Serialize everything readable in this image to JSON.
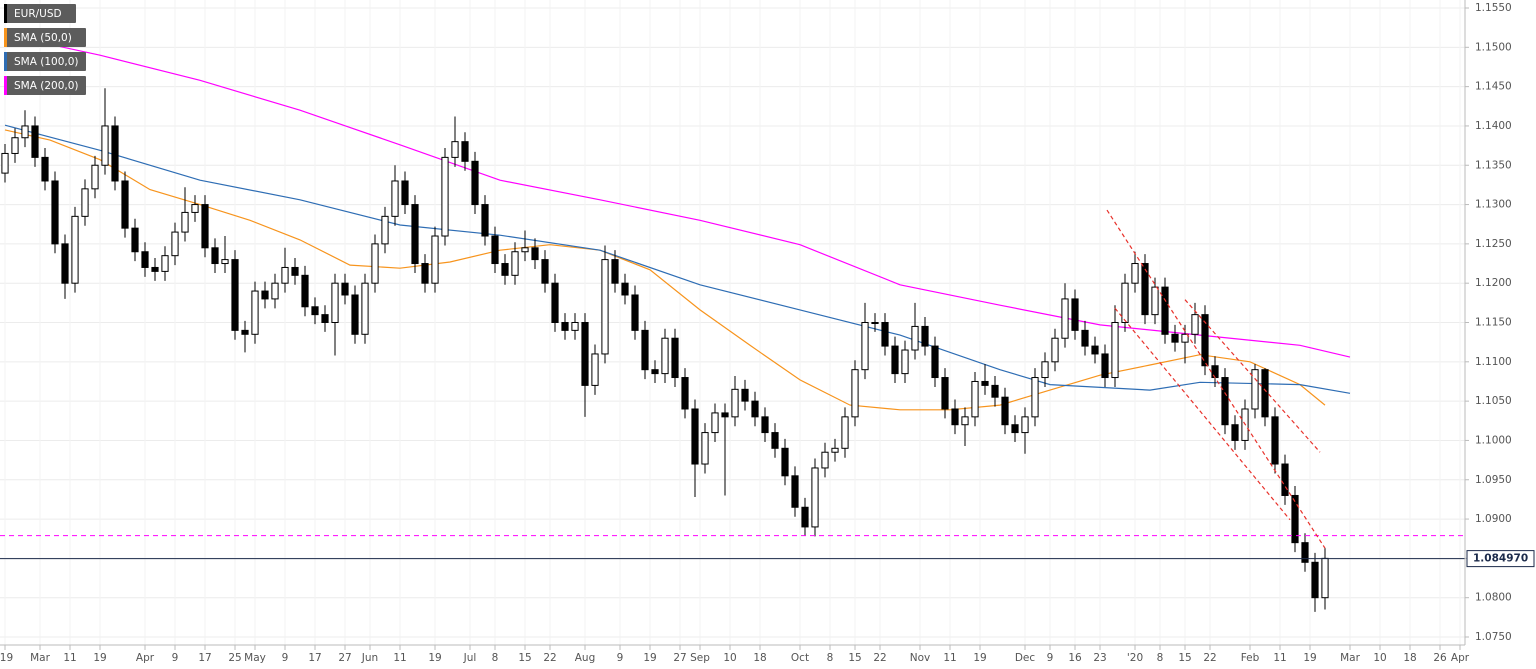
{
  "chart_data": {
    "type": "candlestick",
    "name": "EUR/USD",
    "up_color": "#ffffff",
    "down_color": "#000000",
    "x": [
      0,
      2,
      4,
      6,
      8,
      10,
      12,
      14,
      16,
      18,
      20,
      22,
      24,
      26,
      28,
      30,
      32,
      34,
      36,
      38,
      40,
      42,
      44,
      46,
      48,
      50,
      52,
      54,
      56,
      58,
      60,
      62,
      64,
      66,
      68,
      70,
      72,
      74,
      76,
      78,
      80,
      82,
      84,
      86,
      88,
      90,
      92,
      94,
      96,
      98,
      100,
      102,
      104,
      106,
      108,
      110,
      112,
      114,
      116,
      118,
      120,
      122,
      124,
      126,
      128,
      130,
      132,
      134,
      136,
      138,
      140,
      142,
      144,
      146,
      148,
      150,
      152,
      154,
      156,
      158,
      160,
      162,
      164,
      166,
      168,
      170,
      172,
      174,
      176,
      178,
      180,
      182,
      184,
      186,
      188,
      190,
      192,
      194,
      196,
      198,
      200,
      202,
      204,
      206,
      208,
      210,
      212,
      214,
      216,
      218,
      220,
      222,
      224,
      226,
      228,
      230,
      232,
      234,
      236,
      238,
      240,
      242,
      244,
      246,
      248,
      250,
      252,
      254,
      256,
      258,
      260,
      262,
      264
    ],
    "open": [
      1.134,
      1.1365,
      1.1385,
      1.14,
      1.136,
      1.133,
      1.125,
      1.12,
      1.1285,
      1.132,
      1.135,
      1.14,
      1.133,
      1.127,
      1.124,
      1.122,
      1.1215,
      1.1235,
      1.1265,
      1.129,
      1.13,
      1.1245,
      1.1225,
      1.123,
      1.114,
      1.1135,
      1.119,
      1.118,
      1.12,
      1.122,
      1.121,
      1.117,
      1.116,
      1.115,
      1.12,
      1.1185,
      1.1135,
      1.12,
      1.125,
      1.1285,
      1.133,
      1.13,
      1.1225,
      1.12,
      1.126,
      1.136,
      1.138,
      1.1355,
      1.13,
      1.126,
      1.1225,
      1.121,
      1.124,
      1.1245,
      1.123,
      1.12,
      1.115,
      1.114,
      1.115,
      1.107,
      1.111,
      1.123,
      1.12,
      1.1185,
      1.114,
      1.109,
      1.1085,
      1.113,
      1.108,
      1.104,
      1.097,
      1.101,
      1.1035,
      1.103,
      1.1065,
      1.105,
      1.103,
      1.101,
      1.099,
      1.0955,
      1.0915,
      1.089,
      1.0965,
      1.0985,
      1.099,
      1.103,
      1.109,
      1.115,
      1.115,
      1.112,
      1.1085,
      1.1115,
      1.1145,
      1.112,
      1.108,
      1.104,
      1.102,
      1.103,
      1.1075,
      1.107,
      1.1055,
      1.102,
      1.101,
      1.103,
      1.108,
      1.11,
      1.113,
      1.118,
      1.114,
      1.112,
      1.111,
      1.108,
      1.115,
      1.12,
      1.1225,
      1.116,
      1.1195,
      1.1135,
      1.1125,
      1.1135,
      1.116,
      1.1095,
      1.108,
      1.102,
      1.1,
      1.104,
      1.109,
      1.103,
      1.097,
      1.093,
      1.087,
      1.0845,
      1.08
    ],
    "high": [
      1.1377,
      1.1397,
      1.142,
      1.1412,
      1.1372,
      1.1342,
      1.1262,
      1.1297,
      1.1332,
      1.1362,
      1.1448,
      1.1412,
      1.1342,
      1.1282,
      1.1252,
      1.1232,
      1.1247,
      1.1277,
      1.1322,
      1.1312,
      1.1312,
      1.1257,
      1.126,
      1.1242,
      1.1152,
      1.1202,
      1.1202,
      1.1212,
      1.1245,
      1.1232,
      1.1222,
      1.1182,
      1.1172,
      1.1212,
      1.1212,
      1.1197,
      1.1212,
      1.1262,
      1.1297,
      1.135,
      1.1342,
      1.1312,
      1.1237,
      1.1272,
      1.1372,
      1.1412,
      1.1392,
      1.1367,
      1.1312,
      1.1272,
      1.1237,
      1.1252,
      1.1267,
      1.1257,
      1.1242,
      1.1212,
      1.1162,
      1.1162,
      1.1162,
      1.1122,
      1.1248,
      1.1242,
      1.1212,
      1.1197,
      1.1152,
      1.1102,
      1.1142,
      1.1142,
      1.1092,
      1.1052,
      1.1022,
      1.1047,
      1.1047,
      1.1082,
      1.1077,
      1.1062,
      1.1042,
      1.1022,
      1.1002,
      1.0967,
      1.0927,
      1.0977,
      1.0997,
      1.1002,
      1.1042,
      1.1102,
      1.1175,
      1.1162,
      1.1162,
      1.1132,
      1.1127,
      1.1175,
      1.1157,
      1.1132,
      1.1092,
      1.1052,
      1.1042,
      1.1087,
      1.1097,
      1.1082,
      1.1067,
      1.1032,
      1.1042,
      1.1092,
      1.1112,
      1.1142,
      1.12,
      1.1192,
      1.1152,
      1.1132,
      1.1122,
      1.1172,
      1.1212,
      1.124,
      1.1237,
      1.1207,
      1.1207,
      1.1147,
      1.1147,
      1.1175,
      1.1172,
      1.1107,
      1.1092,
      1.1032,
      1.1052,
      1.1097,
      1.1092,
      1.1042,
      1.0982,
      1.0942,
      1.0882,
      1.0857,
      1.0863
    ],
    "low": [
      1.1328,
      1.1353,
      1.1373,
      1.1348,
      1.1318,
      1.1238,
      1.118,
      1.1188,
      1.1273,
      1.1308,
      1.1338,
      1.1318,
      1.1258,
      1.1228,
      1.1208,
      1.1203,
      1.1203,
      1.1223,
      1.1253,
      1.1278,
      1.1233,
      1.1213,
      1.1213,
      1.1128,
      1.1112,
      1.1123,
      1.1168,
      1.1168,
      1.1188,
      1.1198,
      1.1158,
      1.1148,
      1.1138,
      1.1108,
      1.1173,
      1.1123,
      1.1123,
      1.1188,
      1.1238,
      1.1273,
      1.1288,
      1.1213,
      1.1188,
      1.1188,
      1.1248,
      1.1348,
      1.1343,
      1.1288,
      1.1248,
      1.1213,
      1.1198,
      1.1198,
      1.1228,
      1.1218,
      1.1188,
      1.1138,
      1.1128,
      1.1128,
      1.103,
      1.1058,
      1.1098,
      1.1188,
      1.1173,
      1.1128,
      1.1078,
      1.1073,
      1.1073,
      1.1068,
      1.1028,
      1.0928,
      1.0958,
      1.0998,
      1.093,
      1.1018,
      1.1038,
      1.1018,
      1.0998,
      1.0978,
      1.0943,
      1.0903,
      1.0879,
      1.0878,
      1.0953,
      1.0973,
      1.0978,
      1.1018,
      1.1078,
      1.1138,
      1.1108,
      1.1073,
      1.1073,
      1.1103,
      1.1108,
      1.1068,
      1.1028,
      1.1008,
      1.0993,
      1.1018,
      1.1058,
      1.1043,
      1.1008,
      1.0998,
      1.0983,
      1.1018,
      1.1068,
      1.1088,
      1.1118,
      1.1128,
      1.1108,
      1.1098,
      1.1068,
      1.1068,
      1.1138,
      1.1188,
      1.1148,
      1.1148,
      1.1123,
      1.1113,
      1.1098,
      1.1123,
      1.1083,
      1.1068,
      1.1008,
      1.0988,
      1.0988,
      1.1028,
      1.1018,
      1.0958,
      1.0918,
      1.0858,
      1.0833,
      1.0782,
      1.0785
    ],
    "close": [
      1.1365,
      1.1385,
      1.14,
      1.136,
      1.133,
      1.125,
      1.12,
      1.1285,
      1.132,
      1.135,
      1.14,
      1.133,
      1.127,
      1.124,
      1.122,
      1.1215,
      1.1235,
      1.1265,
      1.129,
      1.13,
      1.1245,
      1.1225,
      1.123,
      1.114,
      1.1135,
      1.119,
      1.118,
      1.12,
      1.122,
      1.121,
      1.117,
      1.116,
      1.115,
      1.12,
      1.1185,
      1.1135,
      1.12,
      1.125,
      1.1285,
      1.133,
      1.13,
      1.1225,
      1.12,
      1.126,
      1.136,
      1.138,
      1.1355,
      1.13,
      1.126,
      1.1225,
      1.121,
      1.124,
      1.1245,
      1.123,
      1.12,
      1.115,
      1.114,
      1.115,
      1.107,
      1.111,
      1.123,
      1.12,
      1.1185,
      1.114,
      1.109,
      1.1085,
      1.113,
      1.108,
      1.104,
      1.097,
      1.101,
      1.1035,
      1.103,
      1.1065,
      1.105,
      1.103,
      1.101,
      1.099,
      1.0955,
      1.0915,
      1.089,
      1.0965,
      1.0985,
      1.099,
      1.103,
      1.109,
      1.115,
      1.115,
      1.112,
      1.1085,
      1.1115,
      1.1145,
      1.112,
      1.108,
      1.104,
      1.102,
      1.103,
      1.1075,
      1.107,
      1.1055,
      1.102,
      1.101,
      1.103,
      1.108,
      1.11,
      1.113,
      1.118,
      1.114,
      1.112,
      1.111,
      1.108,
      1.115,
      1.12,
      1.1225,
      1.116,
      1.1195,
      1.1135,
      1.1125,
      1.1135,
      1.116,
      1.1095,
      1.108,
      1.102,
      1.1,
      1.104,
      1.109,
      1.103,
      1.097,
      1.093,
      1.087,
      1.0845,
      1.08,
      1.085
    ],
    "series": [
      {
        "name": "SMA (50,0)",
        "color": "#f7941d",
        "x": [
          0,
          9,
          19,
          29,
          39,
          49,
          59,
          69,
          79,
          89,
          99,
          109,
          119,
          129,
          139,
          149,
          159,
          169,
          179,
          189,
          199,
          209,
          219,
          229,
          239,
          249,
          259,
          264
        ],
        "values": [
          1.1395,
          1.1382,
          1.1357,
          1.1319,
          1.13,
          1.128,
          1.1255,
          1.1223,
          1.1219,
          1.1227,
          1.1242,
          1.1249,
          1.1242,
          1.1217,
          1.1166,
          1.1121,
          1.1077,
          1.1045,
          1.1039,
          1.1039,
          1.1045,
          1.1064,
          1.1083,
          1.1096,
          1.1109,
          1.11,
          1.1071,
          1.1045
        ]
      },
      {
        "name": "SMA (100,0)",
        "color": "#2e6db4",
        "x": [
          0,
          19,
          39,
          59,
          79,
          99,
          119,
          139,
          159,
          179,
          199,
          209,
          229,
          239,
          259,
          269
        ],
        "values": [
          1.1401,
          1.1369,
          1.1331,
          1.1306,
          1.1274,
          1.1261,
          1.1242,
          1.1198,
          1.1166,
          1.1134,
          1.109,
          1.1071,
          1.1064,
          1.1074,
          1.1071,
          1.106
        ]
      },
      {
        "name": "SMA (200,0)",
        "color": "#ff00ff",
        "x": [
          0,
          19,
          39,
          59,
          79,
          99,
          119,
          139,
          159,
          179,
          199,
          219,
          239,
          259,
          269
        ],
        "values": [
          1.1516,
          1.149,
          1.1458,
          1.142,
          1.1376,
          1.1331,
          1.1306,
          1.128,
          1.1249,
          1.1198,
          1.1172,
          1.1147,
          1.1134,
          1.1121,
          1.1106
        ]
      }
    ],
    "hlines": [
      {
        "value": 1.0879,
        "color": "#ff00ff",
        "dashed": true
      },
      {
        "value": 1.08497,
        "color": "#1b2a4a",
        "dashed": false
      }
    ],
    "trendlines": [
      {
        "color": "#e8322b",
        "x": [
          220.4,
          264
        ],
        "values": [
          1.1293,
          1.0863
        ]
      },
      {
        "color": "#e8322b",
        "x": [
          236,
          263
        ],
        "values": [
          1.1179,
          1.0985
        ]
      },
      {
        "color": "#e8322b",
        "x": [
          222,
          257
        ],
        "values": [
          1.1168,
          1.0899
        ]
      }
    ],
    "last_price": {
      "value": 1.08497,
      "label": "1.084970"
    },
    "xlim": [
      -1,
      292
    ],
    "ylim": [
      1.075,
      1.155
    ],
    "grid": true,
    "xticks": [
      {
        "value": 0,
        "label": "'19"
      },
      {
        "value": 7,
        "label": "Mar"
      },
      {
        "value": 13,
        "label": "11"
      },
      {
        "value": 19,
        "label": "19"
      },
      {
        "value": 28,
        "label": "Apr"
      },
      {
        "value": 34,
        "label": "9"
      },
      {
        "value": 40,
        "label": "17"
      },
      {
        "value": 46,
        "label": "25"
      },
      {
        "value": 50,
        "label": "May"
      },
      {
        "value": 56,
        "label": "9"
      },
      {
        "value": 62,
        "label": "17"
      },
      {
        "value": 68,
        "label": "27"
      },
      {
        "value": 73,
        "label": "Jun"
      },
      {
        "value": 79,
        "label": "11"
      },
      {
        "value": 86,
        "label": "19"
      },
      {
        "value": 93,
        "label": "Jul"
      },
      {
        "value": 98,
        "label": "8"
      },
      {
        "value": 104,
        "label": "15"
      },
      {
        "value": 109,
        "label": "22"
      },
      {
        "value": 116,
        "label": "Aug"
      },
      {
        "value": 123,
        "label": "9"
      },
      {
        "value": 129,
        "label": "19"
      },
      {
        "value": 135,
        "label": "27"
      },
      {
        "value": 139,
        "label": "Sep"
      },
      {
        "value": 145,
        "label": "10"
      },
      {
        "value": 151,
        "label": "18"
      },
      {
        "value": 159,
        "label": "Oct"
      },
      {
        "value": 165,
        "label": "8"
      },
      {
        "value": 170,
        "label": "15"
      },
      {
        "value": 175,
        "label": "22"
      },
      {
        "value": 183,
        "label": "Nov"
      },
      {
        "value": 189,
        "label": "11"
      },
      {
        "value": 195,
        "label": "19"
      },
      {
        "value": 204,
        "label": "Dec"
      },
      {
        "value": 209,
        "label": "9"
      },
      {
        "value": 214,
        "label": "16"
      },
      {
        "value": 219,
        "label": "23"
      },
      {
        "value": 226,
        "label": "'20"
      },
      {
        "value": 231,
        "label": "8"
      },
      {
        "value": 236,
        "label": "15"
      },
      {
        "value": 241,
        "label": "22"
      },
      {
        "value": 249,
        "label": "Feb"
      },
      {
        "value": 255,
        "label": "11"
      },
      {
        "value": 261,
        "label": "19"
      },
      {
        "value": 269,
        "label": "Mar"
      },
      {
        "value": 275,
        "label": "10"
      },
      {
        "value": 281,
        "label": "18"
      },
      {
        "value": 287,
        "label": "26"
      },
      {
        "value": 291,
        "label": "Apr"
      }
    ],
    "yticks": [
      {
        "value": 1.075,
        "label": "1.0750"
      },
      {
        "value": 1.08,
        "label": "1.0800"
      },
      {
        "value": 1.085,
        "label": "1.0850"
      },
      {
        "value": 1.09,
        "label": "1.0900"
      },
      {
        "value": 1.095,
        "label": "1.0950"
      },
      {
        "value": 1.1,
        "label": "1.1000"
      },
      {
        "value": 1.105,
        "label": "1.1050"
      },
      {
        "value": 1.11,
        "label": "1.1100"
      },
      {
        "value": 1.115,
        "label": "1.1150"
      },
      {
        "value": 1.12,
        "label": "1.1200"
      },
      {
        "value": 1.125,
        "label": "1.1250"
      },
      {
        "value": 1.13,
        "label": "1.1300"
      },
      {
        "value": 1.135,
        "label": "1.1350"
      },
      {
        "value": 1.14,
        "label": "1.1400"
      },
      {
        "value": 1.145,
        "label": "1.1450"
      },
      {
        "value": 1.15,
        "label": "1.1500"
      },
      {
        "value": 1.155,
        "label": "1.1550"
      }
    ]
  }
}
